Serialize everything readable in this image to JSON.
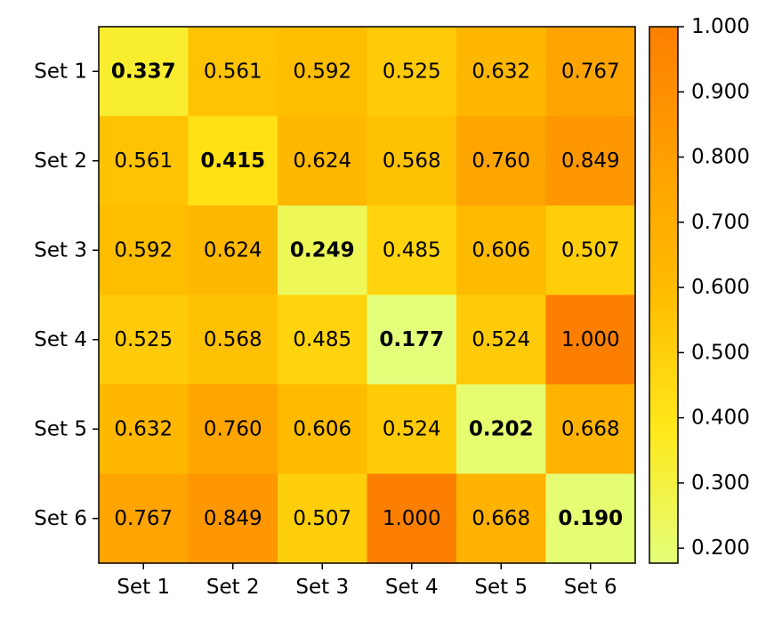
{
  "chart_data": {
    "type": "heatmap",
    "title": "",
    "xlabel": "",
    "ylabel": "",
    "x_categories": [
      "Set 1",
      "Set 2",
      "Set 3",
      "Set 4",
      "Set 5",
      "Set 6"
    ],
    "y_categories": [
      "Set 1",
      "Set 2",
      "Set 3",
      "Set 4",
      "Set 5",
      "Set 6"
    ],
    "values": [
      [
        0.337,
        0.561,
        0.592,
        0.525,
        0.632,
        0.767
      ],
      [
        0.561,
        0.415,
        0.624,
        0.568,
        0.76,
        0.849
      ],
      [
        0.592,
        0.624,
        0.249,
        0.485,
        0.606,
        0.507
      ],
      [
        0.525,
        0.568,
        0.485,
        0.177,
        0.524,
        1.0
      ],
      [
        0.632,
        0.76,
        0.606,
        0.524,
        0.202,
        0.668
      ],
      [
        0.767,
        0.849,
        0.507,
        1.0,
        0.668,
        0.19
      ]
    ],
    "diagonal_bold": true,
    "value_decimals": 3,
    "colorbar": {
      "vmin": 0.177,
      "vmax": 1.0,
      "ticks": [
        0.2,
        0.3,
        0.4,
        0.5,
        0.6,
        0.7,
        0.8,
        0.9,
        1.0
      ],
      "tick_labels": [
        "0.200",
        "0.300",
        "0.400",
        "0.500",
        "0.600",
        "0.700",
        "0.800",
        "0.900",
        "1.000"
      ],
      "position": "right"
    },
    "colormap": {
      "name": "Wistia",
      "stops": [
        "#e4ff7a",
        "#ffe81a",
        "#ffbd00",
        "#ffa000",
        "#fc7f00"
      ]
    },
    "grid": false
  }
}
